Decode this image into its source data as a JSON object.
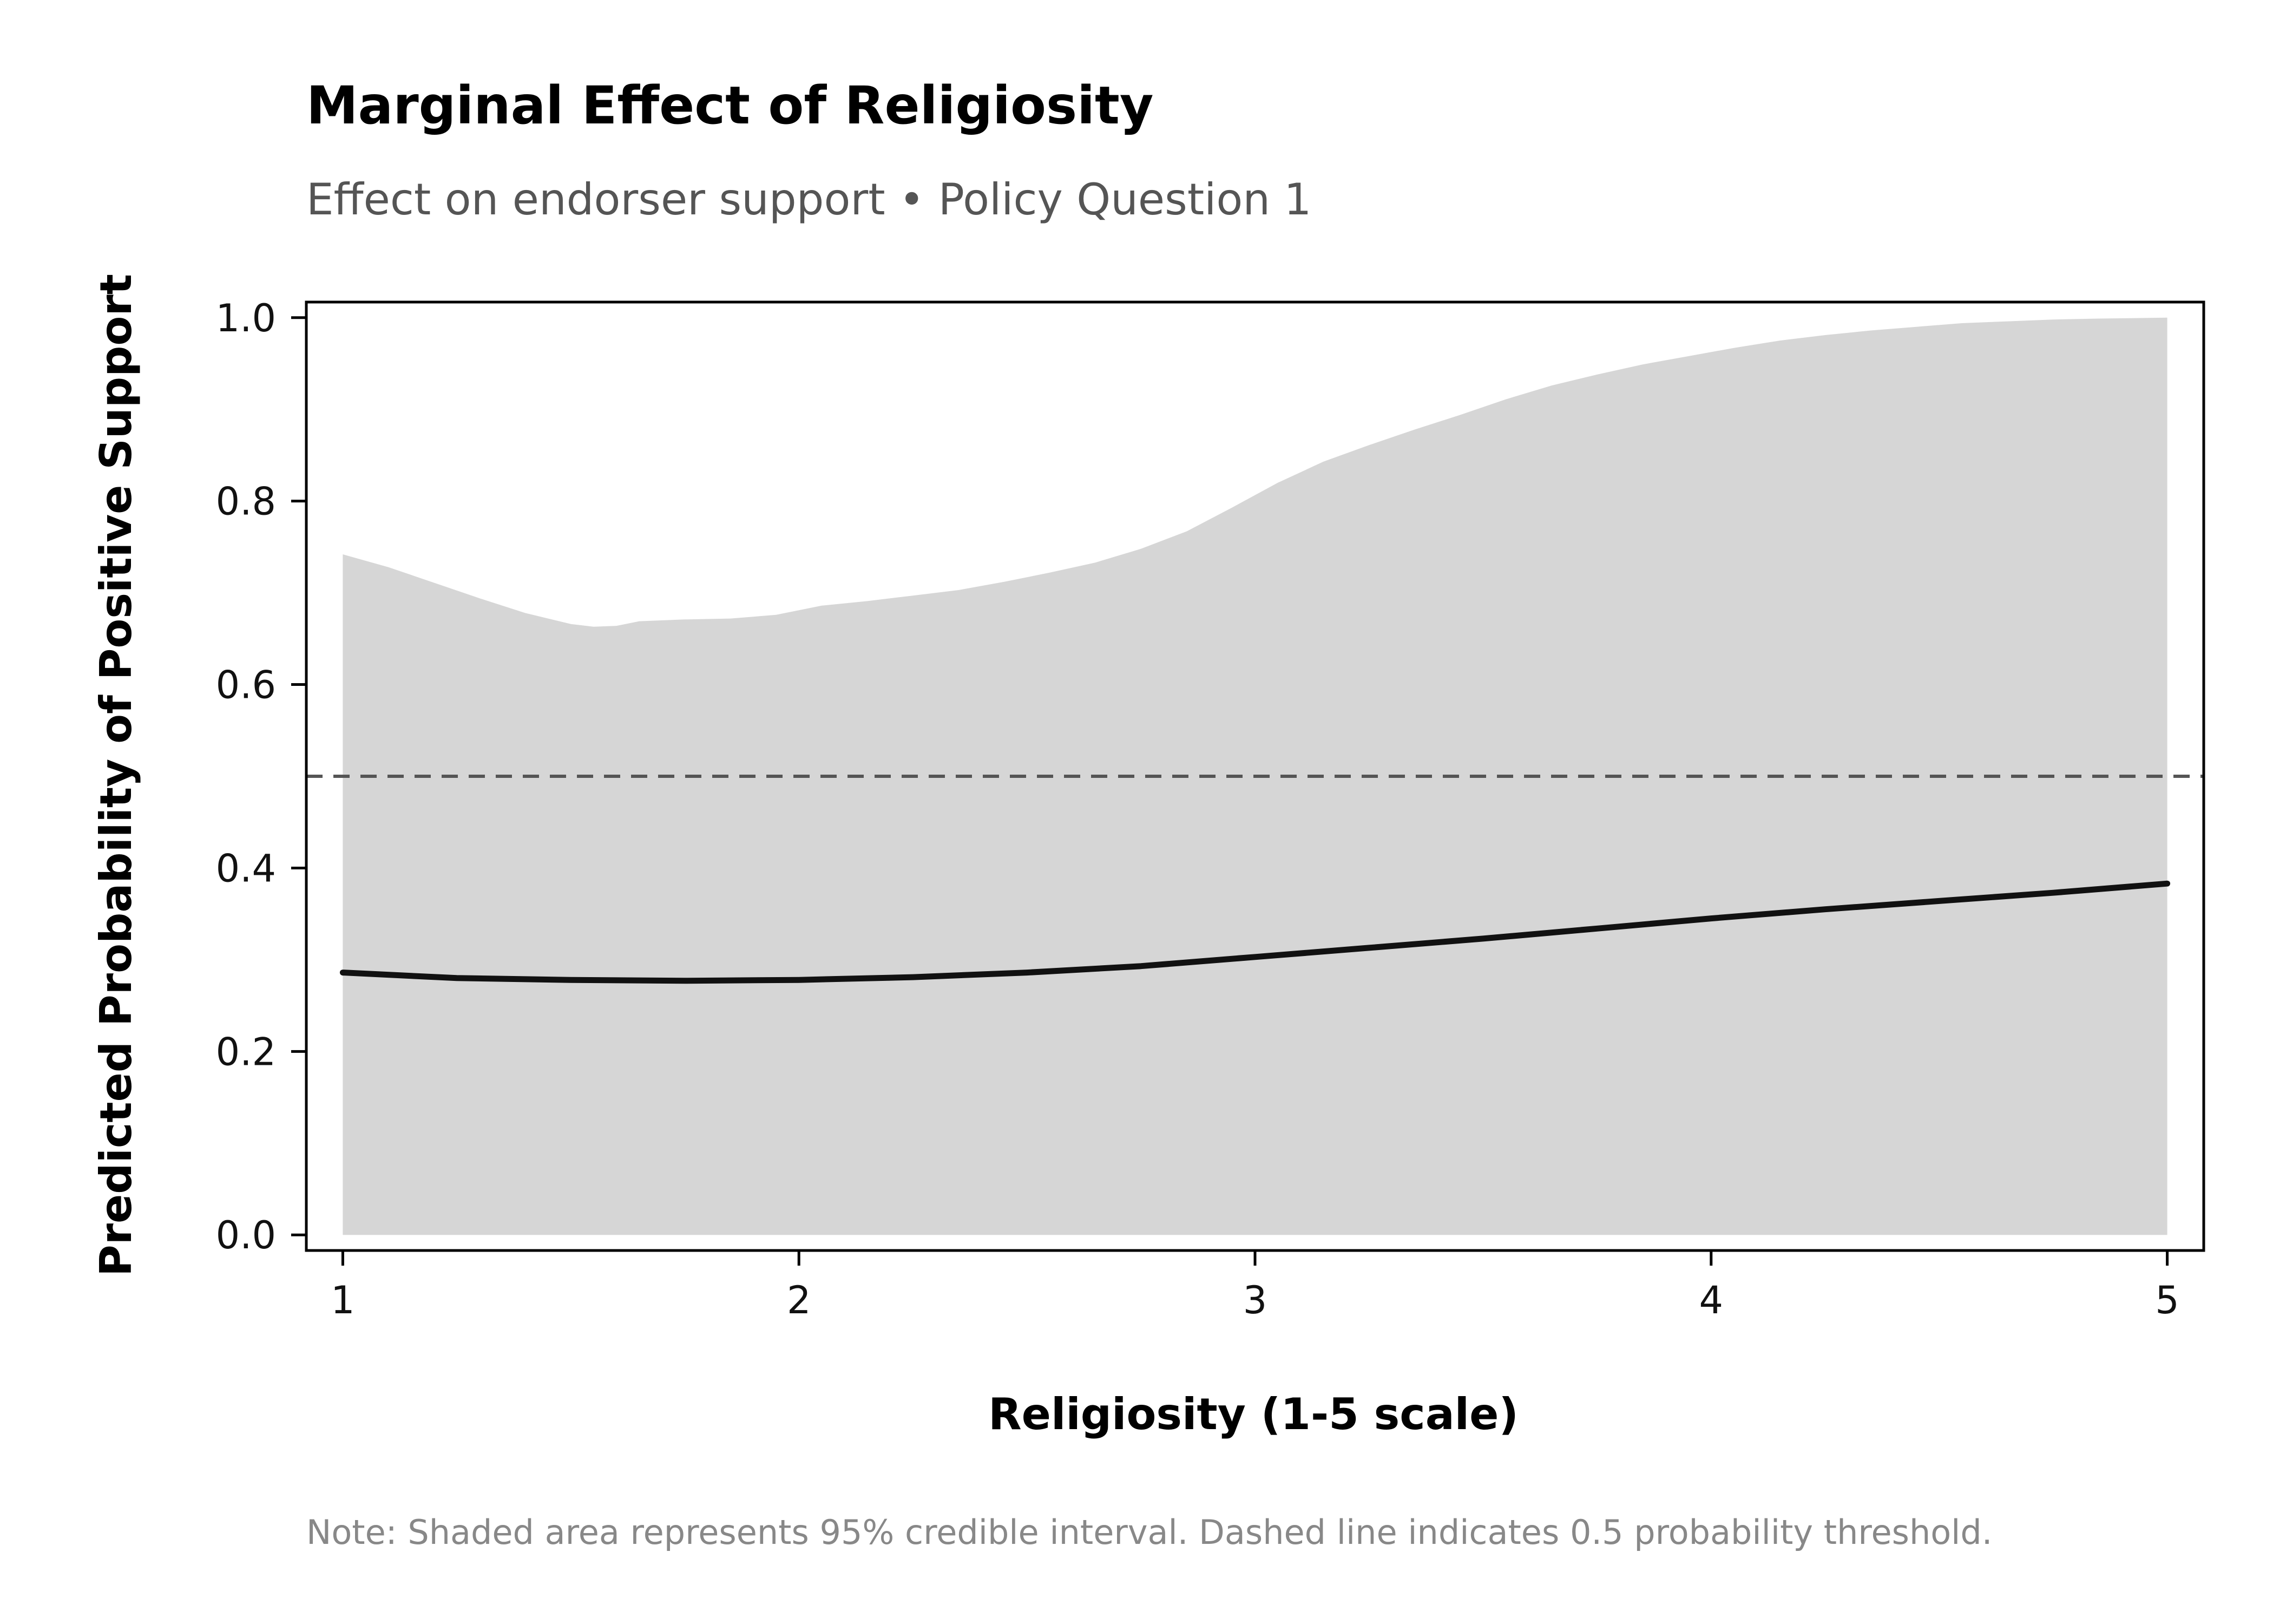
{
  "title": "Marginal Effect of Religiosity",
  "subtitle": "Effect on endorser support • Policy Question 1",
  "note": "Note: Shaded area represents 95% credible interval. Dashed line indicates 0.5 probability threshold.",
  "chart_data": {
    "type": "line",
    "xlabel": "Religiosity (1-5 scale)",
    "ylabel": "Predicted Probability of Positive Support",
    "xlim": [
      0.92,
      5.08
    ],
    "ylim": [
      -0.017,
      1.017
    ],
    "x_ticks": [
      1,
      2,
      3,
      4,
      5
    ],
    "x_tick_labels": [
      "1",
      "2",
      "3",
      "4",
      "5"
    ],
    "y_ticks": [
      0.0,
      0.2,
      0.4,
      0.6,
      0.8,
      1.0
    ],
    "y_tick_labels": [
      "0.0",
      "0.2",
      "0.4",
      "0.6",
      "0.8",
      "1.0"
    ],
    "grid": false,
    "threshold": 0.5,
    "series": [
      {
        "x": [
          1.0,
          1.25,
          1.5,
          1.75,
          2.0,
          2.25,
          2.5,
          2.75,
          3.0,
          3.25,
          3.5,
          3.75,
          4.0,
          4.25,
          4.5,
          4.75,
          5.0
        ],
        "y": [
          0.286,
          0.28,
          0.278,
          0.277,
          0.278,
          0.281,
          0.286,
          0.293,
          0.303,
          0.313,
          0.323,
          0.334,
          0.345,
          0.355,
          0.364,
          0.373,
          0.383
        ]
      }
    ],
    "interval": {
      "x": [
        1.0,
        1.1,
        1.2,
        1.3,
        1.4,
        1.5,
        1.55,
        1.6,
        1.65,
        1.75,
        1.85,
        1.95,
        2.05,
        2.15,
        2.25,
        2.35,
        2.45,
        2.55,
        2.65,
        2.75,
        2.85,
        2.95,
        3.05,
        3.15,
        3.25,
        3.35,
        3.45,
        3.55,
        3.65,
        3.75,
        3.85,
        3.95,
        4.05,
        4.15,
        4.25,
        4.35,
        4.45,
        4.55,
        4.65,
        4.75,
        4.85,
        5.0
      ],
      "lower": [
        0.0,
        0.0,
        0.0,
        0.0,
        0.0,
        0.0,
        0.0,
        0.0,
        0.0,
        0.0,
        0.0,
        0.0,
        0.0,
        0.0,
        0.0,
        0.0,
        0.0,
        0.0,
        0.0,
        0.0,
        0.0,
        0.0,
        0.0,
        0.0,
        0.0,
        0.0,
        0.0,
        0.0,
        0.0,
        0.0,
        0.0,
        0.0,
        0.0,
        0.0,
        0.0,
        0.0,
        0.0,
        0.0,
        0.0,
        0.0,
        0.0,
        0.0
      ],
      "upper": [
        0.742,
        0.728,
        0.711,
        0.694,
        0.678,
        0.666,
        0.663,
        0.664,
        0.669,
        0.671,
        0.672,
        0.676,
        0.686,
        0.691,
        0.697,
        0.703,
        0.712,
        0.722,
        0.733,
        0.748,
        0.767,
        0.793,
        0.82,
        0.843,
        0.861,
        0.878,
        0.894,
        0.911,
        0.926,
        0.938,
        0.949,
        0.958,
        0.967,
        0.975,
        0.981,
        0.986,
        0.99,
        0.994,
        0.996,
        0.998,
        0.999,
        1.0
      ]
    },
    "colors": {
      "line": "#111111",
      "band": "#d6d6d6",
      "threshold": "#555555"
    }
  }
}
